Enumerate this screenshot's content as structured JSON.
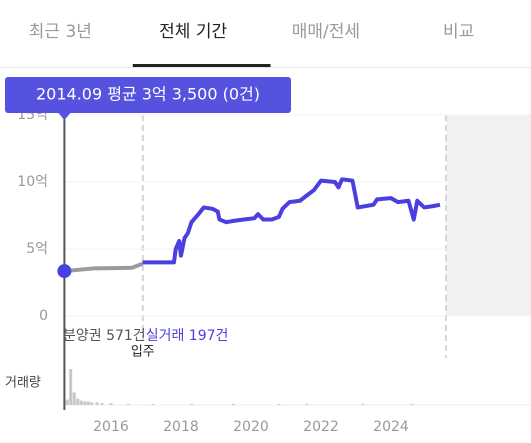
{
  "tabs": [
    "최근 3년",
    "전체 기간",
    "매매/전세",
    "비교"
  ],
  "active_tab": 1,
  "chart_data": {
    "type": "line",
    "tooltip": {
      "label": "2014.09 평균 3억 3,500 (0건)",
      "x": 2014.67,
      "y": 3.35
    },
    "series": [
      {
        "name": "분양권 571건",
        "color": "#9b9b9b",
        "x": [
          2014.67,
          2015.5,
          2016.6,
          2016.9
        ],
        "values": [
          3.35,
          3.55,
          3.6,
          3.9
        ]
      },
      {
        "name": "실거래 197건",
        "color": "#4a3fe0",
        "x": [
          2016.9,
          2017.8,
          2017.85,
          2017.95,
          2018.0,
          2018.1,
          2018.2,
          2018.3,
          2018.5,
          2018.65,
          2018.9,
          2019.05,
          2019.1,
          2019.3,
          2019.5,
          2019.8,
          2020.1,
          2020.2,
          2020.35,
          2020.6,
          2020.8,
          2020.9,
          2021.1,
          2021.4,
          2021.6,
          2021.8,
          2022.0,
          2022.4,
          2022.5,
          2022.6,
          2022.9,
          2023.05,
          2023.5,
          2023.6,
          2024.0,
          2024.2,
          2024.5,
          2024.65,
          2024.75,
          2024.95,
          2025.2,
          2025.4
        ],
        "values": [
          4.0,
          4.0,
          5.0,
          5.6,
          4.5,
          5.8,
          6.2,
          7.0,
          7.6,
          8.1,
          8.0,
          7.8,
          7.2,
          7.0,
          7.1,
          7.2,
          7.3,
          7.6,
          7.2,
          7.2,
          7.4,
          8.0,
          8.5,
          8.6,
          9.0,
          9.4,
          10.1,
          10.0,
          9.6,
          10.2,
          10.1,
          8.1,
          8.3,
          8.7,
          8.8,
          8.5,
          8.6,
          7.2,
          8.6,
          8.1,
          8.2,
          8.3
        ]
      }
    ],
    "move_in": {
      "label": "입주",
      "x": 2016.91
    },
    "shaded_from": 2025.57,
    "xlim": [
      2014.63,
      2028.0
    ],
    "xticks": [
      2016,
      2018,
      2020,
      2022,
      2024
    ],
    "ylim": [
      0,
      15
    ],
    "yticks": [
      0,
      {
        "value": 5,
        "label": "5억"
      },
      {
        "value": 10,
        "label": "10억"
      },
      {
        "value": 15,
        "label": "15억"
      }
    ],
    "volume": {
      "label": "거래량",
      "color": "#c8c8c8",
      "ylim": [
        0,
        50
      ],
      "x": [
        2014.75,
        2014.85,
        2014.95,
        2015.05,
        2015.15,
        2015.25,
        2015.35,
        2015.45,
        2015.6,
        2015.75,
        2016.0,
        2016.5,
        2017.2,
        2018.3,
        2019.5,
        2020.8,
        2021.6,
        2023.2,
        2024.6
      ],
      "values": [
        6,
        40,
        14,
        7,
        5,
        4,
        4,
        3,
        3,
        2,
        2,
        1,
        1,
        1,
        1,
        1,
        1,
        1,
        1
      ]
    }
  }
}
